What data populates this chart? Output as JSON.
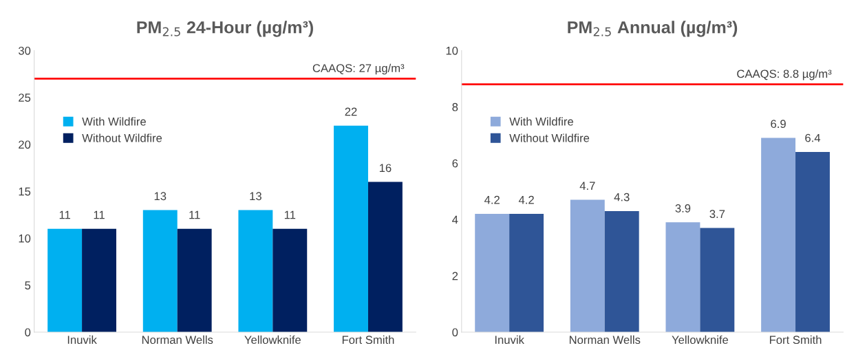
{
  "chart_data": [
    {
      "type": "bar",
      "title": "PM$_{2.5}$ 24-Hour (µg/m³)",
      "categories": [
        "Inuvik",
        "Norman Wells",
        "Yellowknife",
        "Fort Smith"
      ],
      "series": [
        {
          "name": "With Wildfire",
          "color": "#00b0f0",
          "values": [
            11,
            13,
            13,
            22
          ]
        },
        {
          "name": "Without Wildfire",
          "color": "#002060",
          "values": [
            11,
            11,
            11,
            16
          ]
        }
      ],
      "ylim": [
        0,
        30
      ],
      "yticks": [
        0,
        5,
        10,
        15,
        20,
        25,
        30
      ],
      "ref_lines": [
        {
          "axis": "y",
          "value": 27,
          "label": "CAAQS: 27 µg/m³",
          "color": "#ff0000"
        }
      ],
      "data_labels": true,
      "legend": "top left",
      "grid": false
    },
    {
      "type": "bar",
      "title": "PM$_{2.5}$ Annual (µg/m³)",
      "categories": [
        "Inuvik",
        "Norman Wells",
        "Yellowknife",
        "Fort Smith"
      ],
      "series": [
        {
          "name": "With Wildfire",
          "color": "#8eaadb",
          "values": [
            4.2,
            4.7,
            3.9,
            6.9
          ]
        },
        {
          "name": "Without Wildfire",
          "color": "#2f5597",
          "values": [
            4.2,
            4.3,
            3.7,
            6.4
          ]
        }
      ],
      "ylim": [
        0,
        10
      ],
      "yticks": [
        0,
        2,
        4,
        6,
        8,
        10
      ],
      "ref_lines": [
        {
          "axis": "y",
          "value": 8.8,
          "label": "CAAQS: 8.8 µg/m³",
          "color": "#ff0000"
        }
      ],
      "data_labels": true,
      "legend": "top left",
      "grid": false
    }
  ]
}
